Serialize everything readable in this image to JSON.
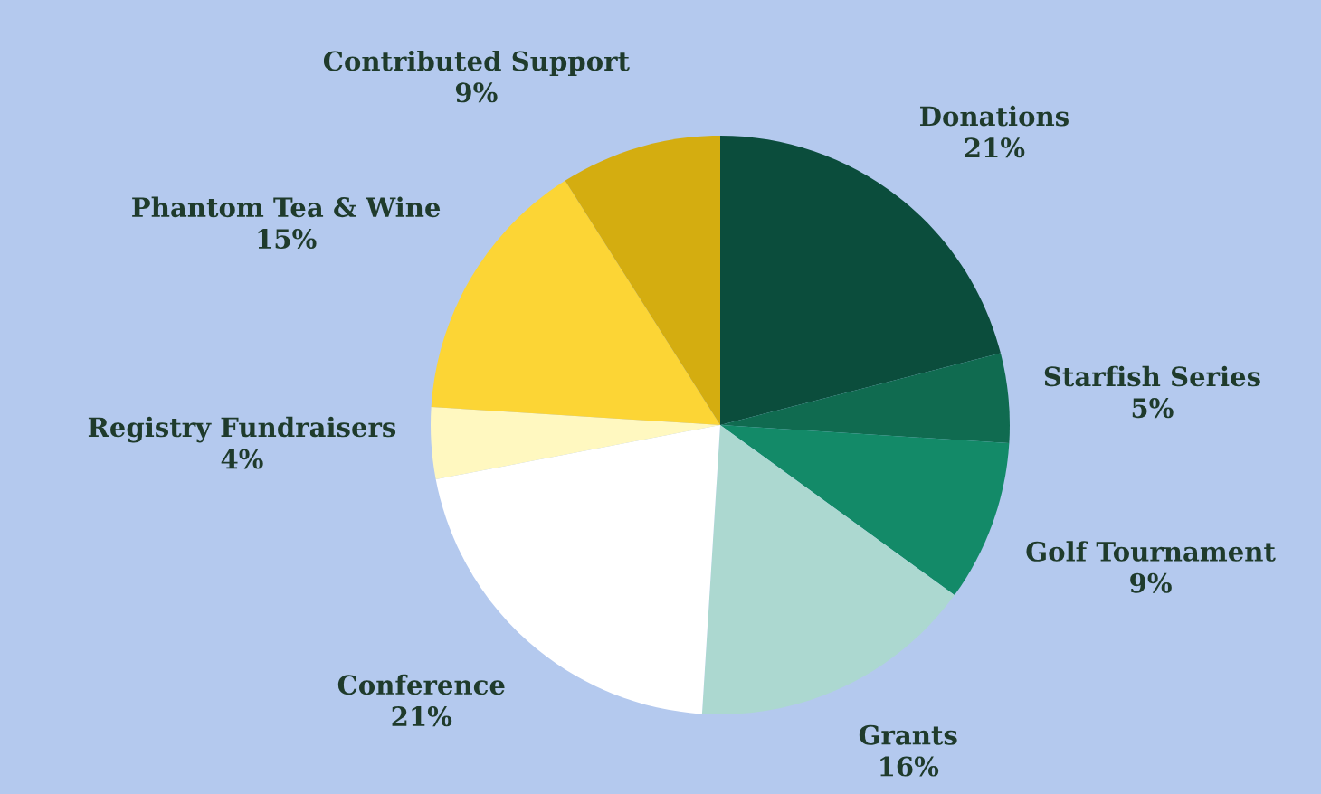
{
  "chart_data": {
    "type": "pie",
    "categories": [
      "Donations",
      "Starfish Series",
      "Golf Tournament",
      "Grants",
      "Conference",
      "Registry Fundraisers",
      "Phantom Tea & Wine",
      "Contributed Support"
    ],
    "values": [
      21,
      5,
      9,
      16,
      21,
      4,
      15,
      9
    ],
    "value_labels": [
      "21%",
      "5%",
      "9%",
      "16%",
      "21%",
      "4%",
      "15%",
      "9%"
    ],
    "colors": [
      "#0b4d3c",
      "#106b50",
      "#138a68",
      "#acd8d0",
      "#ffffff",
      "#fff8c0",
      "#fcd535",
      "#d4ad10"
    ],
    "legend": false
  }
}
